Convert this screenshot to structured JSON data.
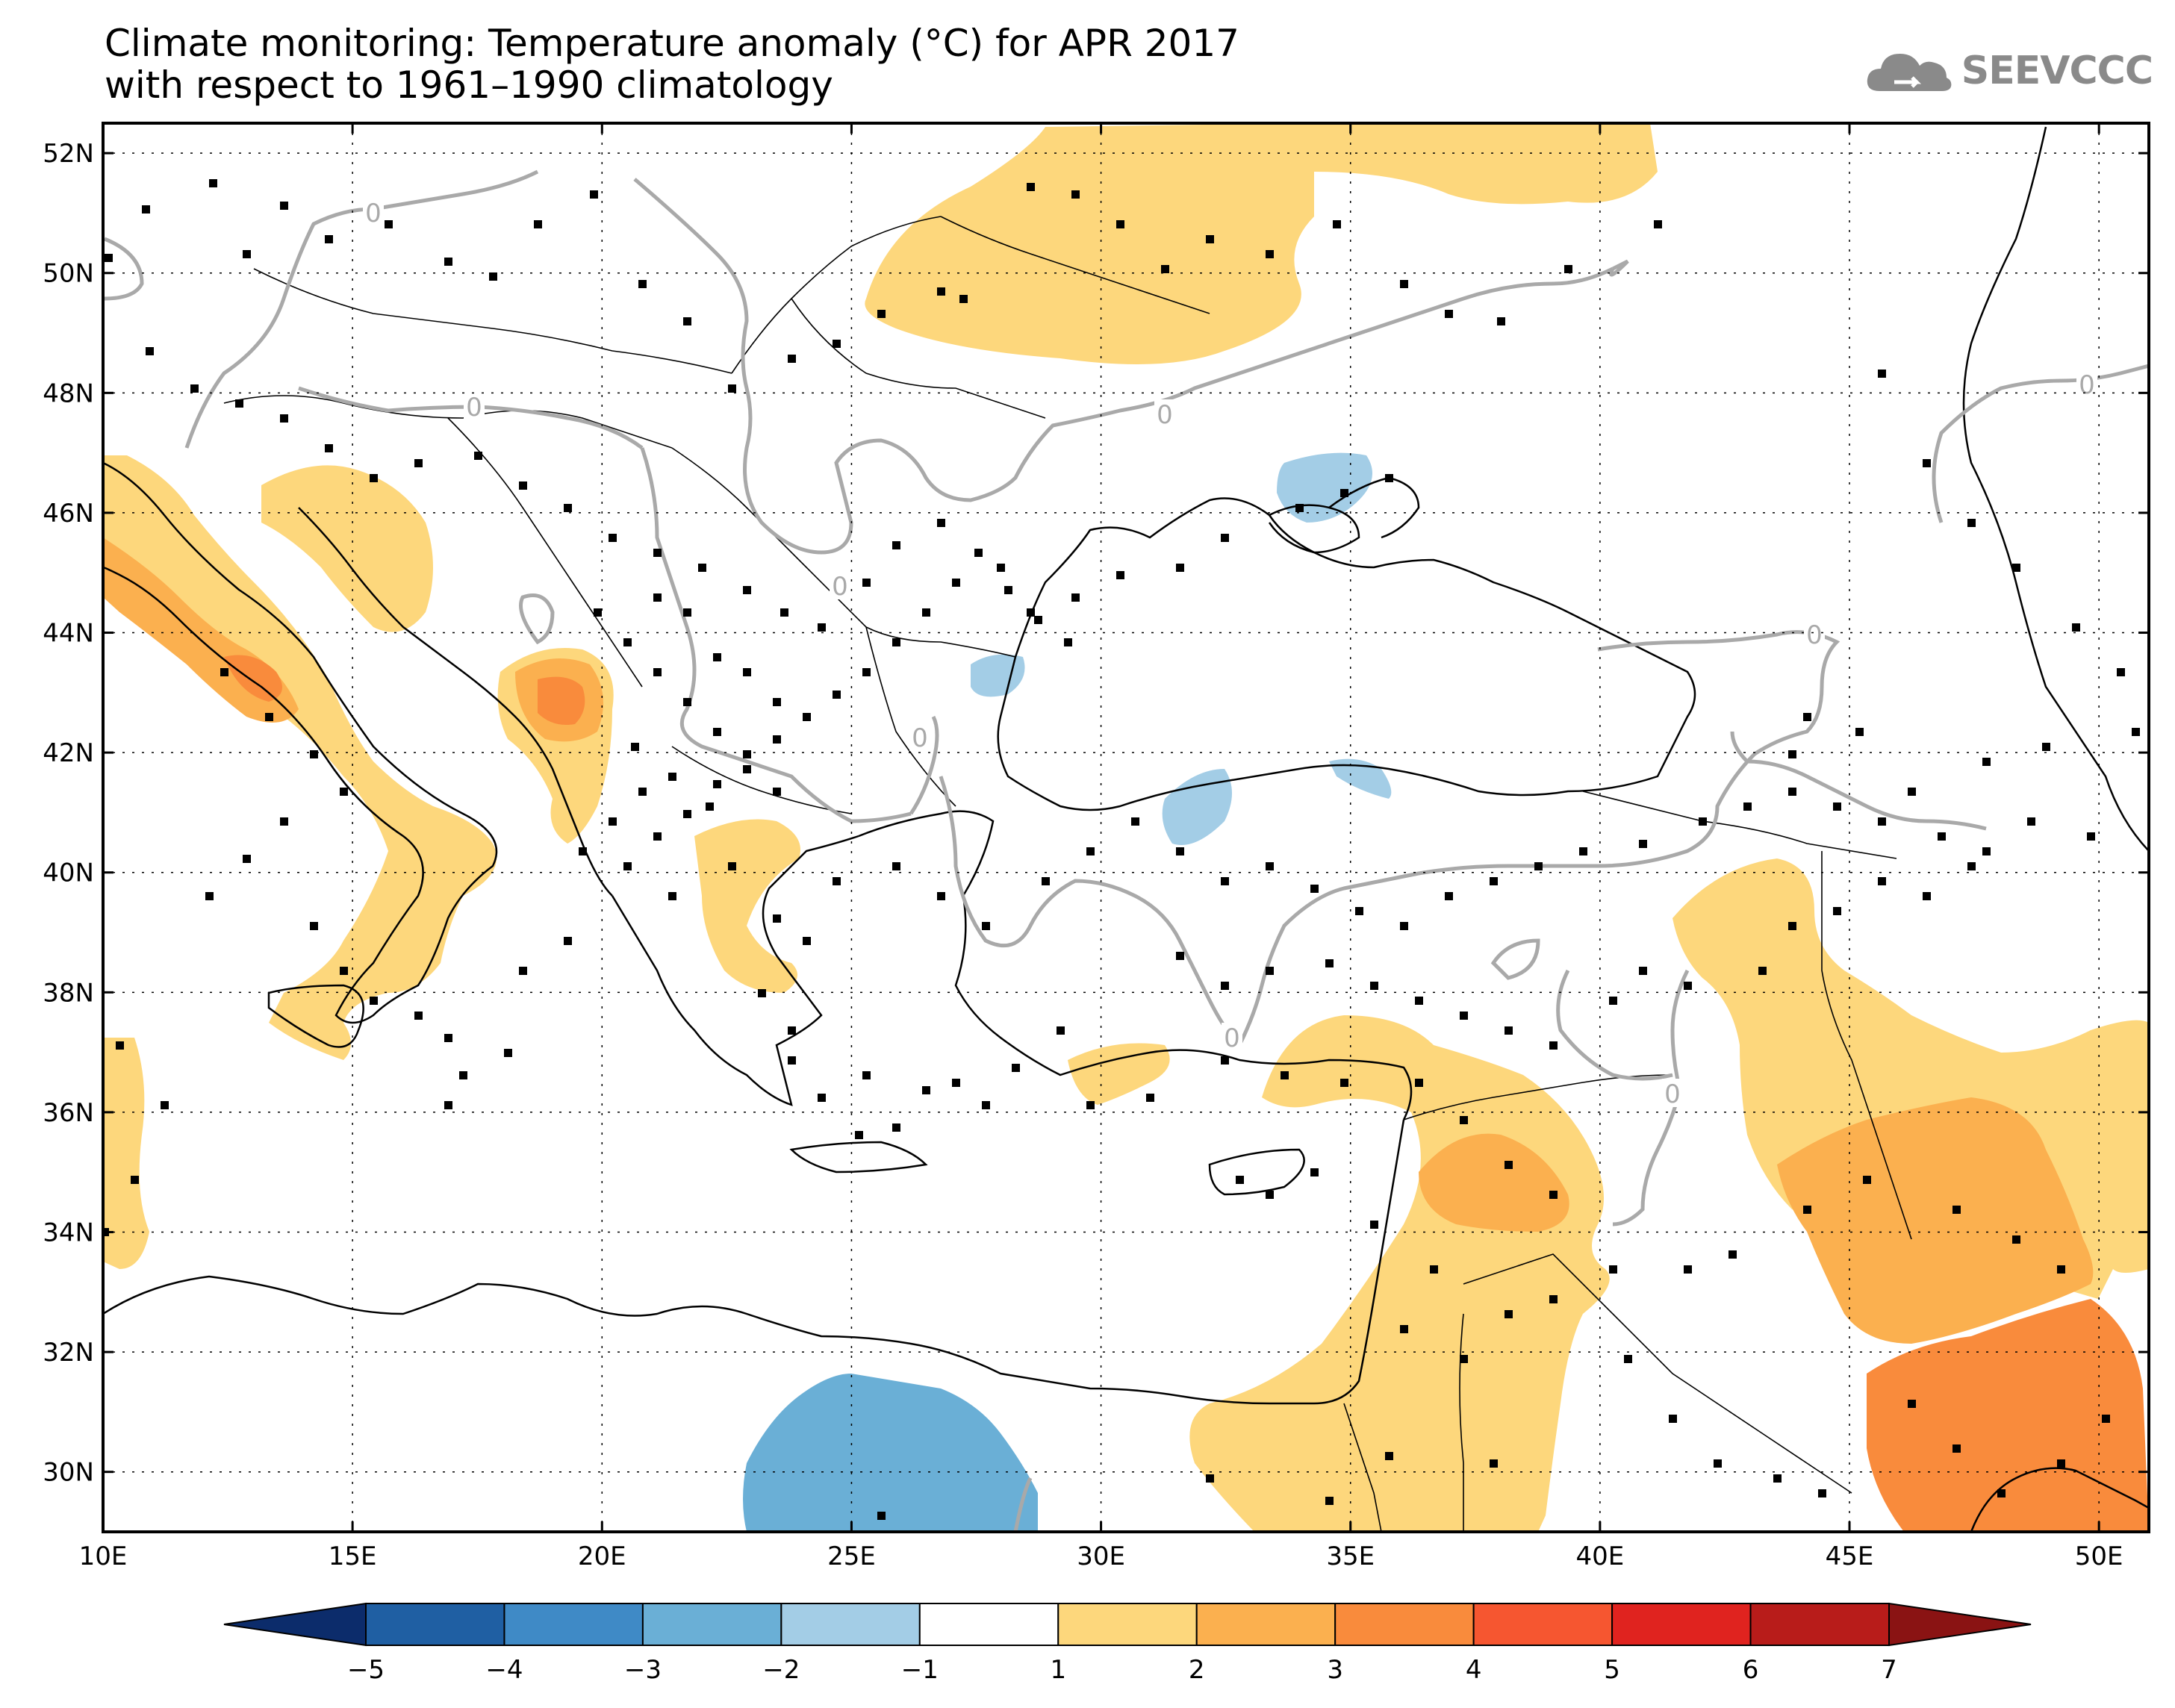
{
  "title": {
    "line1": "Climate monitoring: Temperature anomaly (°C) for APR 2017",
    "line2": "with respect to 1961–1990 climatology"
  },
  "logo": {
    "text": "SEEVCCC",
    "icon": "cloud-icon"
  },
  "map": {
    "lon_range": [
      10,
      51
    ],
    "lat_range": [
      29,
      52.5
    ],
    "lon_ticks": [
      "10E",
      "15E",
      "20E",
      "25E",
      "30E",
      "35E",
      "40E",
      "45E",
      "50E"
    ],
    "lat_ticks": [
      "52N",
      "50N",
      "48N",
      "46N",
      "44N",
      "42N",
      "40N",
      "38N",
      "36N",
      "34N",
      "32N",
      "30N"
    ],
    "contour_label": "0"
  },
  "colorbar": {
    "labels": [
      "−5",
      "−4",
      "−3",
      "−2",
      "−1",
      "1",
      "2",
      "3",
      "4",
      "5",
      "6",
      "7"
    ],
    "colors": [
      "#1f5fa3",
      "#3f8ac6",
      "#6aafd6",
      "#a3cde6",
      "#ffffff",
      "#fdd77c",
      "#fbb04f",
      "#f98b3c",
      "#f65630",
      "#e0231f",
      "#b81c1a"
    ],
    "low_extension": "#0c2c6b",
    "high_extension": "#8a1313"
  },
  "colors": {
    "warm1": "#fdd77c",
    "warm2": "#fbb04f",
    "warm3": "#f98b3c",
    "cool1": "#a3cde6",
    "cool2": "#6aafd6",
    "contour": "#a9a9a9"
  }
}
